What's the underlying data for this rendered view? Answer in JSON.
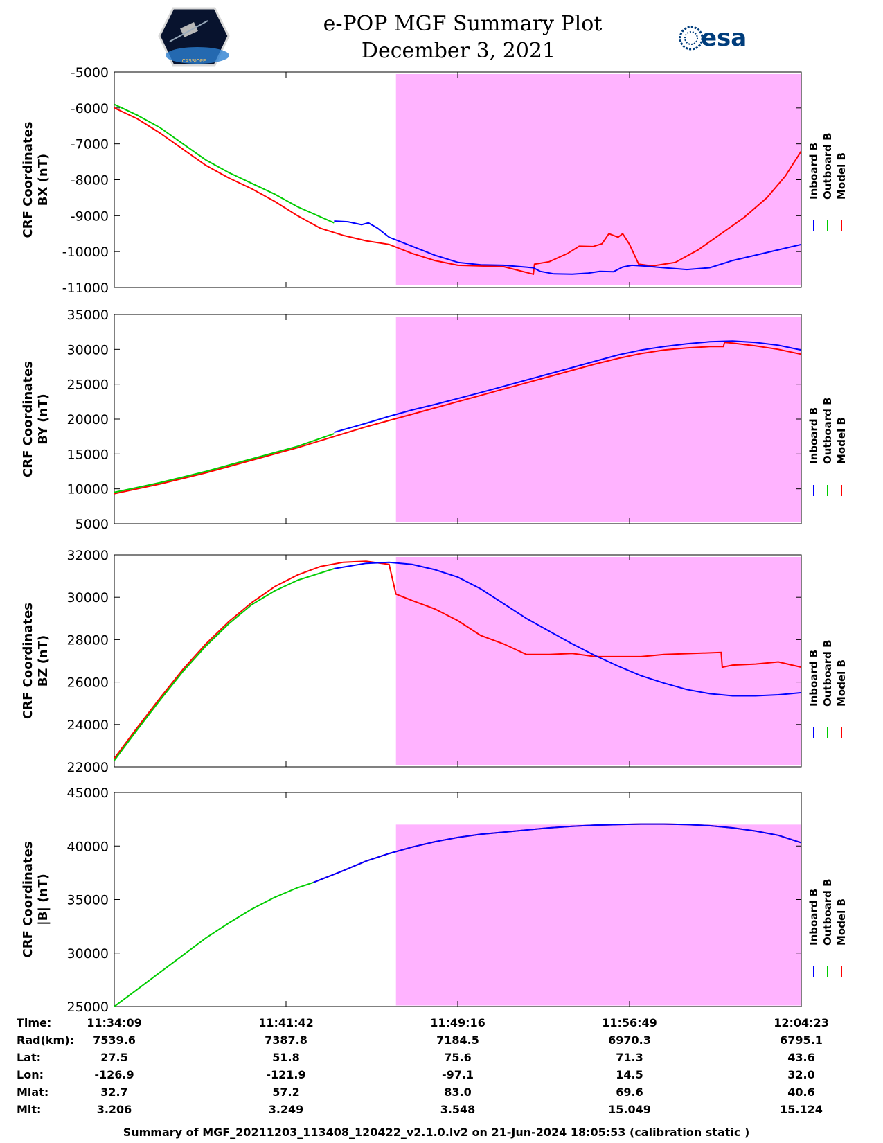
{
  "header": {
    "title": "e-POP MGF Summary Plot",
    "date": "December 3, 2021",
    "logo_left": "CASSIOPE",
    "logo_right": "esa"
  },
  "legend": {
    "entries": [
      "Inboard B",
      "Outboard B",
      "Model B"
    ],
    "colors": [
      "#0000ff",
      "#00cc00",
      "#ff0000"
    ]
  },
  "shade_color": "#ffb3ff",
  "chart_data": [
    {
      "type": "line",
      "ylabel_line1": "CRF Coordinates",
      "ylabel_line2": "BX (nT)",
      "ylim": [
        -11000,
        -5000
      ],
      "yticks": [
        -5000,
        -6000,
        -7000,
        -8000,
        -9000,
        -10000,
        -11000
      ],
      "xlim": [
        0,
        30
      ],
      "shaded_region": [
        12.3,
        30
      ],
      "series": [
        {
          "name": "Outboard B",
          "color": "#00cc00",
          "x": [
            0,
            1,
            2,
            3,
            4,
            5,
            6,
            7,
            8,
            9.6
          ],
          "y": [
            -5900,
            -6200,
            -6550,
            -7000,
            -7450,
            -7800,
            -8100,
            -8400,
            -8750,
            -9200
          ]
        },
        {
          "name": "Inboard B",
          "color": "#0000ff",
          "x": [
            9.6,
            10.2,
            10.8,
            11.1,
            11.5,
            12,
            13,
            14,
            15,
            16,
            17,
            18.3,
            18.6,
            19.2,
            20,
            20.7,
            21.2,
            21.8,
            22.2,
            22.6,
            23.1,
            24,
            25,
            26,
            27,
            28,
            29,
            30
          ],
          "y": [
            -9150,
            -9170,
            -9250,
            -9200,
            -9350,
            -9600,
            -9850,
            -10100,
            -10300,
            -10370,
            -10380,
            -10450,
            -10550,
            -10620,
            -10630,
            -10600,
            -10550,
            -10560,
            -10430,
            -10380,
            -10400,
            -10450,
            -10500,
            -10450,
            -10250,
            -10100,
            -9950,
            -9800
          ]
        },
        {
          "name": "Model B",
          "color": "#ff0000",
          "x": [
            0,
            1,
            2,
            3,
            4,
            5,
            6,
            7,
            8,
            9,
            10,
            11,
            12,
            13,
            14,
            15,
            16,
            17,
            18.3,
            18.35,
            19,
            19.8,
            20.3,
            20.9,
            21.3,
            21.6,
            22,
            22.2,
            22.5,
            22.9,
            23.5,
            24.5,
            25.5,
            26.5,
            27.5,
            28.5,
            29.3,
            30
          ],
          "y": [
            -6000,
            -6300,
            -6700,
            -7150,
            -7600,
            -7950,
            -8250,
            -8600,
            -9000,
            -9350,
            -9550,
            -9700,
            -9800,
            -10050,
            -10250,
            -10380,
            -10400,
            -10420,
            -10630,
            -10350,
            -10280,
            -10050,
            -9850,
            -9860,
            -9780,
            -9500,
            -9600,
            -9500,
            -9800,
            -10350,
            -10400,
            -10300,
            -9950,
            -9500,
            -9050,
            -8500,
            -7900,
            -7200
          ]
        }
      ]
    },
    {
      "type": "line",
      "ylabel_line1": "CRF Coordinates",
      "ylabel_line2": "BY (nT)",
      "ylim": [
        5000,
        35000
      ],
      "yticks": [
        35000,
        30000,
        25000,
        20000,
        15000,
        10000,
        5000
      ],
      "xlim": [
        0,
        30
      ],
      "shaded_region": [
        12.3,
        30
      ],
      "series": [
        {
          "name": "Outboard B",
          "color": "#00cc00",
          "x": [
            0,
            1,
            2,
            3,
            4,
            5,
            6,
            7,
            8,
            9.6
          ],
          "y": [
            9500,
            10200,
            10900,
            11700,
            12500,
            13400,
            14300,
            15200,
            16100,
            17900
          ]
        },
        {
          "name": "Inboard B",
          "color": "#0000ff",
          "x": [
            9.6,
            11,
            12,
            13,
            14,
            15,
            16,
            17,
            18,
            19,
            20,
            21,
            22,
            23,
            24,
            25,
            26,
            27,
            28,
            29,
            30
          ],
          "y": [
            18100,
            19400,
            20400,
            21300,
            22100,
            22950,
            23800,
            24700,
            25600,
            26500,
            27400,
            28300,
            29200,
            29900,
            30400,
            30800,
            31100,
            31200,
            31000,
            30600,
            29900
          ]
        },
        {
          "name": "Model B",
          "color": "#ff0000",
          "x": [
            0,
            1,
            2,
            3,
            4,
            5,
            6,
            7,
            8,
            9,
            10,
            11,
            12,
            13,
            14,
            15,
            16,
            17,
            18,
            19,
            20,
            21,
            22,
            23,
            24,
            25,
            26,
            26.6,
            26.65,
            27,
            28,
            29,
            30
          ],
          "y": [
            9300,
            10000,
            10700,
            11500,
            12300,
            13200,
            14100,
            15000,
            15900,
            16900,
            17900,
            18900,
            19800,
            20700,
            21600,
            22500,
            23400,
            24300,
            25200,
            26100,
            27000,
            27900,
            28700,
            29400,
            29900,
            30200,
            30400,
            30400,
            31000,
            30900,
            30500,
            30000,
            29300
          ]
        }
      ]
    },
    {
      "type": "line",
      "ylabel_line1": "CRF Coordinates",
      "ylabel_line2": "BZ (nT)",
      "ylim": [
        22000,
        32000
      ],
      "yticks": [
        32000,
        30000,
        28000,
        26000,
        24000,
        22000
      ],
      "xlim": [
        0,
        30
      ],
      "shaded_region": [
        12.3,
        30
      ],
      "series": [
        {
          "name": "Outboard B",
          "color": "#00cc00",
          "x": [
            0,
            1,
            2,
            3,
            4,
            5,
            6,
            7,
            8,
            9.6
          ],
          "y": [
            22300,
            23750,
            25150,
            26500,
            27700,
            28750,
            29650,
            30300,
            30800,
            31350
          ]
        },
        {
          "name": "Inboard B",
          "color": "#0000ff",
          "x": [
            9.6,
            11,
            12,
            13,
            14,
            15,
            16,
            17,
            18,
            19,
            20,
            21,
            22,
            23,
            24,
            25,
            26,
            27,
            28,
            29,
            30
          ],
          "y": [
            31350,
            31600,
            31650,
            31550,
            31300,
            30950,
            30400,
            29700,
            29000,
            28400,
            27800,
            27250,
            26750,
            26300,
            25950,
            25650,
            25450,
            25350,
            25350,
            25400,
            25500
          ]
        },
        {
          "name": "Model B",
          "color": "#ff0000",
          "x": [
            0,
            1,
            2,
            3,
            4,
            5,
            6,
            7,
            8,
            9,
            10,
            11,
            12,
            12.3,
            13,
            14,
            15,
            16,
            17,
            18,
            19,
            20,
            21,
            22,
            23,
            24,
            26.5,
            26.55,
            27,
            28,
            29,
            30
          ],
          "y": [
            22400,
            23850,
            25250,
            26600,
            27800,
            28850,
            29750,
            30500,
            31050,
            31450,
            31650,
            31700,
            31550,
            30150,
            29850,
            29450,
            28900,
            28200,
            27800,
            27300,
            27300,
            27350,
            27200,
            27200,
            27200,
            27300,
            27400,
            26700,
            26800,
            26850,
            26950,
            26700
          ]
        }
      ]
    },
    {
      "type": "line",
      "ylabel_line1": "CRF Coordinates",
      "ylabel_line2": "|B| (nT)",
      "ylim": [
        25000,
        45000
      ],
      "yticks": [
        45000,
        40000,
        35000,
        30000,
        25000
      ],
      "xlim": [
        0,
        30
      ],
      "shaded_region": [
        12.3,
        30
      ],
      "series": [
        {
          "name": "Outboard B",
          "color": "#00cc00",
          "x": [
            0,
            1,
            2,
            3,
            4,
            5,
            6,
            7,
            8,
            8.7
          ],
          "y": [
            25000,
            26600,
            28200,
            29800,
            31400,
            32800,
            34100,
            35200,
            36100,
            36600
          ]
        },
        {
          "name": "Inboard B",
          "color": "#0000ff",
          "x": [
            8.7,
            10,
            11,
            12,
            13,
            14,
            15,
            16,
            17,
            18,
            19,
            20,
            21,
            22,
            23,
            24,
            25,
            26,
            27,
            28,
            29,
            30
          ],
          "y": [
            36600,
            37700,
            38600,
            39300,
            39900,
            40400,
            40800,
            41100,
            41300,
            41500,
            41700,
            41850,
            41950,
            42000,
            42050,
            42050,
            42000,
            41900,
            41700,
            41400,
            41000,
            40300
          ]
        },
        {
          "name": "Model B",
          "color": "#ff0000",
          "x": [
            8.7,
            10,
            11,
            12,
            13,
            14,
            15,
            16,
            17,
            18,
            19,
            20,
            21,
            22,
            23,
            24,
            25,
            26,
            27,
            28,
            29,
            30
          ],
          "y": [
            36600,
            37700,
            38600,
            39300,
            39900,
            40400,
            40800,
            41100,
            41300,
            41500,
            41700,
            41850,
            41950,
            42000,
            42050,
            42050,
            42000,
            41900,
            41700,
            41400,
            41000,
            40300
          ]
        }
      ]
    }
  ],
  "ephemeris": {
    "labels": [
      "Time:",
      "Rad(km):",
      "Lat:",
      "Lon:",
      "Mlat:",
      "Mlt:"
    ],
    "columns": [
      [
        "11:34:09",
        "7539.6",
        "27.5",
        "-126.9",
        "32.7",
        "3.206"
      ],
      [
        "11:41:42",
        "7387.8",
        "51.8",
        "-121.9",
        "57.2",
        "3.249"
      ],
      [
        "11:49:16",
        "7184.5",
        "75.6",
        "-97.1",
        "83.0",
        "3.548"
      ],
      [
        "11:56:49",
        "6970.3",
        "71.3",
        "14.5",
        "69.6",
        "15.049"
      ],
      [
        "12:04:23",
        "6795.1",
        "43.6",
        "32.0",
        "40.6",
        "15.124"
      ]
    ]
  },
  "footer": "Summary of MGF_20211203_113408_120422_v2.1.0.lv2 on 21-Jun-2024 18:05:53 (calibration static )"
}
